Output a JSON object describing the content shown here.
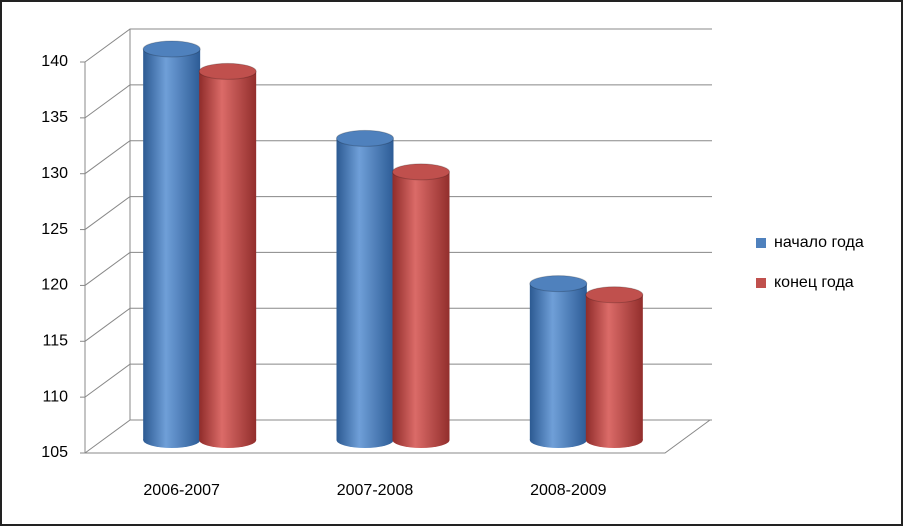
{
  "chart_data": {
    "type": "bar3d",
    "categories": [
      "2006-2007",
      "2007-2008",
      "2008-2009"
    ],
    "series": [
      {
        "name": "начало года",
        "color": "#4f81bd",
        "values": [
          140,
          132,
          119
        ]
      },
      {
        "name": "конец года",
        "color": "#c0504d",
        "values": [
          138,
          129,
          118
        ]
      }
    ],
    "ylim": [
      105,
      140
    ],
    "yticks": [
      105,
      110,
      115,
      120,
      125,
      130,
      135,
      140
    ],
    "grid": true,
    "legend": "right"
  }
}
